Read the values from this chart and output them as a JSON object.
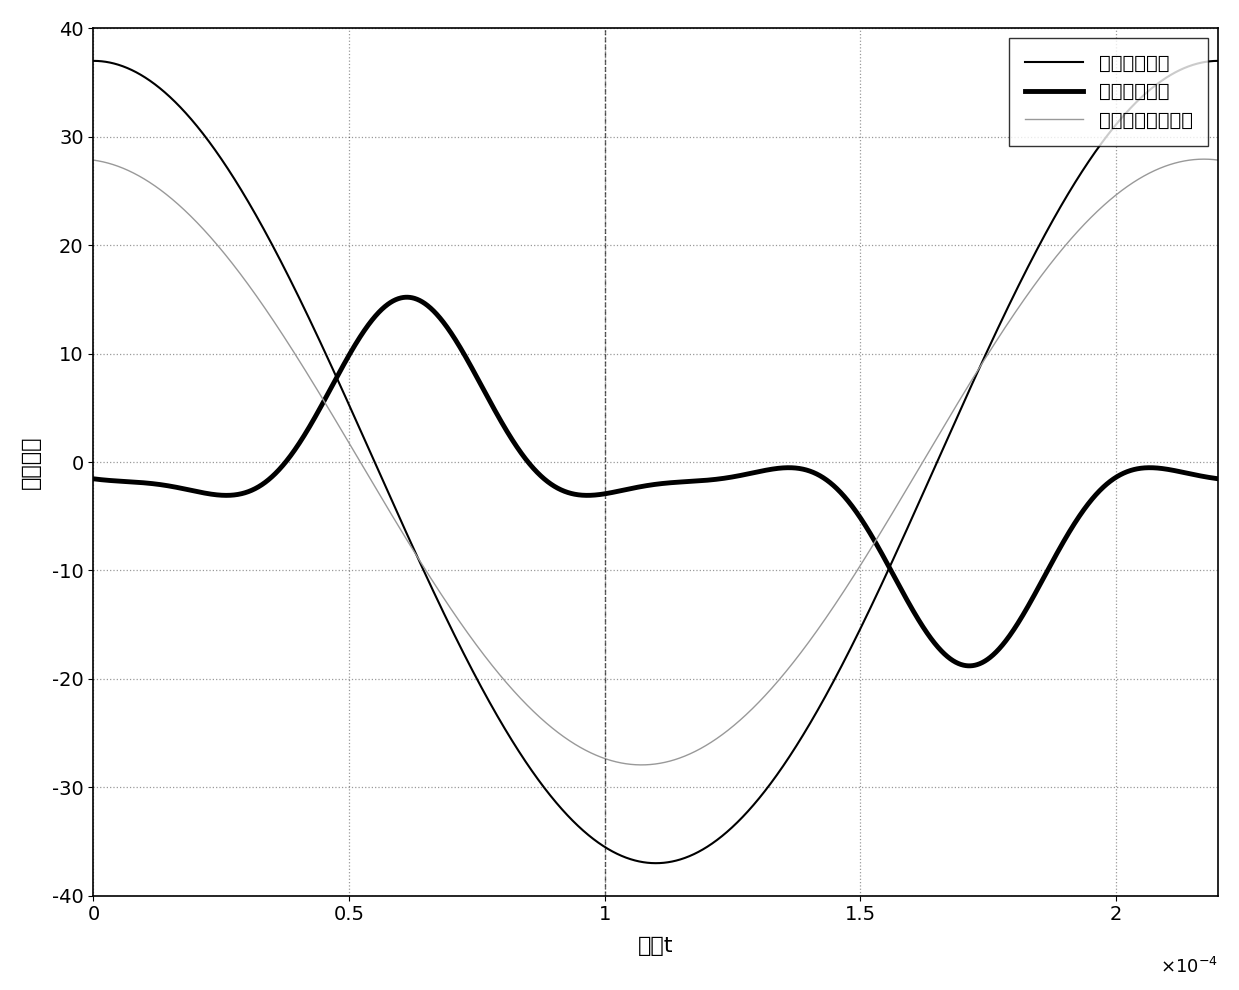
{
  "title": "",
  "xlabel": "时间t",
  "ylabel": "采样波形",
  "xlim": [
    0,
    0.00022
  ],
  "ylim": [
    -40,
    40
  ],
  "xticks": [
    0,
    5e-05,
    0.0001,
    0.00015,
    0.0002
  ],
  "xtick_labels": [
    "0",
    "0.5",
    "1",
    "1.5",
    "2"
  ],
  "yticks": [
    -40,
    -30,
    -20,
    -10,
    0,
    10,
    20,
    30,
    40
  ],
  "legend_labels": [
    "电感原边电压",
    "电感原边电流",
    "空心电感副边电压"
  ],
  "line1_lw": 1.5,
  "line2_lw": 3.5,
  "line3_lw": 1.0,
  "line1_color": "#000000",
  "line2_color": "#000000",
  "line3_color": "#999999",
  "grid_color": "#000000",
  "grid_alpha": 0.4,
  "grid_linestyle": ":",
  "background_color": "#ffffff",
  "freq": 4545.0,
  "n_points": 3000,
  "v1_amplitude": 37.0,
  "v2_scale": 0.755,
  "v2_phase": 0.08,
  "i1_A1": 8.5,
  "i1_A3": -6.5,
  "i1_A5": 2.0,
  "i1_dc": -1.8,
  "i1_phase": -0.18,
  "vline_x": 0.0001,
  "xlabel_fontsize": 16,
  "ylabel_fontsize": 16,
  "tick_fontsize": 14,
  "legend_fontsize": 14
}
